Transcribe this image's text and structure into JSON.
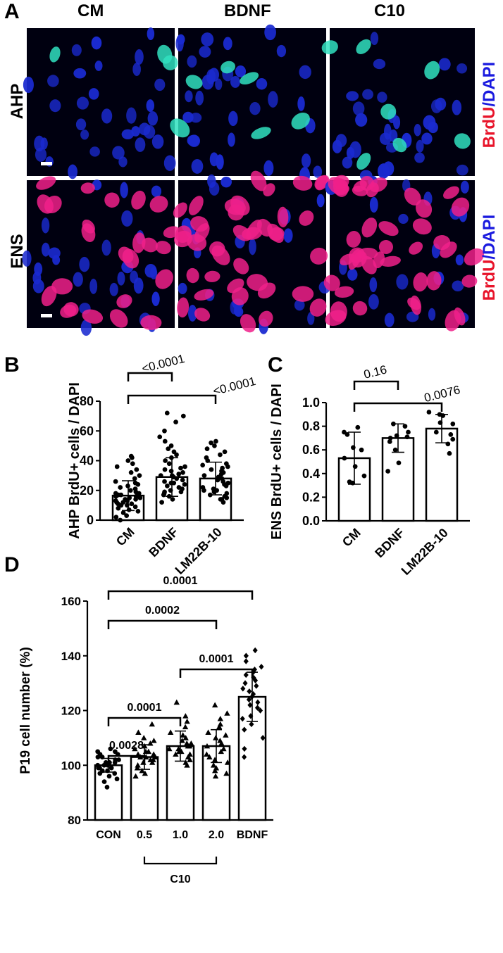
{
  "panel_labels": {
    "a": "A",
    "b": "B",
    "c": "C",
    "d": "D"
  },
  "micrographs": {
    "columns": [
      "CM",
      "BDNF",
      "C10"
    ],
    "rows": [
      "AHP",
      "ENS"
    ],
    "stain": {
      "marker": "BrdU",
      "separator": "/",
      "counterstain": "DAPI"
    },
    "colors": {
      "background": "#000010",
      "dapi": "#1a2ad0",
      "ahp_brdu": "#30e0c0",
      "ens_brdu": "#f0208a"
    }
  },
  "chart_data": [
    {
      "id": "B",
      "type": "bar",
      "categories": [
        "CM",
        "BDNF",
        "LM22B-10"
      ],
      "series": [
        {
          "values": [
            16.5,
            29,
            28
          ]
        }
      ],
      "error": [
        10,
        13,
        11
      ],
      "points": [
        [
          3,
          5,
          6,
          7,
          8,
          9,
          10,
          10,
          11,
          11,
          12,
          12,
          13,
          13,
          14,
          14,
          15,
          15,
          16,
          16,
          17,
          17,
          18,
          18,
          19,
          20,
          21,
          22,
          23,
          24,
          25,
          26,
          28,
          30,
          32,
          34,
          36,
          38,
          40,
          42,
          43,
          0,
          2
        ],
        [
          12,
          14,
          16,
          17,
          18,
          19,
          20,
          21,
          22,
          23,
          24,
          25,
          26,
          27,
          28,
          29,
          30,
          30,
          31,
          32,
          33,
          34,
          35,
          36,
          38,
          40,
          42,
          44,
          46,
          48,
          50,
          53,
          56,
          60,
          66,
          70,
          72,
          19,
          25
        ],
        [
          12,
          14,
          15,
          16,
          17,
          18,
          19,
          20,
          21,
          22,
          23,
          24,
          25,
          26,
          27,
          28,
          29,
          30,
          31,
          32,
          33,
          34,
          35,
          36,
          37,
          38,
          40,
          42,
          44,
          46,
          48,
          50,
          52,
          53,
          14,
          20
        ]
      ],
      "ylabel": "AHP BrdU+ cells / DAPI",
      "ylim": [
        0,
        80
      ],
      "yticks": [
        "0",
        "20",
        "40",
        "60",
        "80"
      ],
      "comparisons": [
        {
          "from": 0,
          "to": 1,
          "label": "<0.0001"
        },
        {
          "from": 0,
          "to": 2,
          "label": "<0.0001"
        }
      ]
    },
    {
      "id": "C",
      "type": "bar",
      "categories": [
        "CM",
        "BDNF",
        "LM22B-10"
      ],
      "series": [
        {
          "values": [
            0.53,
            0.7,
            0.78
          ]
        }
      ],
      "error": [
        0.22,
        0.12,
        0.12
      ],
      "points": [
        [
          0.32,
          0.33,
          0.38,
          0.46,
          0.53,
          0.6,
          0.62,
          0.73,
          0.75,
          0.79
        ],
        [
          0.42,
          0.49,
          0.6,
          0.67,
          0.7,
          0.71,
          0.72,
          0.75,
          0.8,
          0.82
        ],
        [
          0.57,
          0.65,
          0.69,
          0.73,
          0.75,
          0.82,
          0.83,
          0.89,
          0.9,
          0.92
        ]
      ],
      "ylabel": "ENS BrdU+ cells / DAPI",
      "ylim": [
        0,
        1.0
      ],
      "yticks": [
        "0.0",
        "0.2",
        "0.4",
        "0.6",
        "0.8",
        "1.0"
      ],
      "comparisons": [
        {
          "from": 0,
          "to": 1,
          "label": "0.16"
        },
        {
          "from": 0,
          "to": 2,
          "label": "0.0076"
        }
      ]
    },
    {
      "id": "D",
      "type": "bar",
      "categories": [
        "CON",
        "0.5",
        "1.0",
        "2.0",
        "BDNF"
      ],
      "group_label": "C10",
      "series": [
        {
          "values": [
            100,
            103,
            107,
            107,
            125
          ]
        }
      ],
      "error": [
        2.5,
        4.5,
        5.5,
        6,
        9
      ],
      "points": [
        [
          92,
          94,
          95,
          96,
          97,
          97,
          98,
          98,
          99,
          99,
          99,
          100,
          100,
          100,
          101,
          101,
          101,
          102,
          102,
          103,
          103,
          104,
          104,
          105,
          105,
          106
        ],
        [
          96,
          97,
          98,
          99,
          100,
          101,
          101,
          102,
          102,
          103,
          103,
          103,
          104,
          104,
          105,
          105,
          106,
          107,
          108,
          109,
          110,
          112,
          115
        ],
        [
          100,
          101,
          102,
          103,
          104,
          104,
          105,
          105,
          106,
          106,
          107,
          107,
          108,
          108,
          109,
          110,
          111,
          112,
          114,
          116,
          118,
          123
        ],
        [
          96,
          97,
          98,
          99,
          100,
          101,
          102,
          103,
          104,
          105,
          106,
          107,
          108,
          109,
          110,
          111,
          112,
          114,
          115,
          117,
          119,
          122
        ],
        [
          103,
          106,
          110,
          113,
          115,
          117,
          118,
          120,
          121,
          122,
          123,
          124,
          125,
          126,
          127,
          128,
          129,
          130,
          131,
          132,
          133,
          134,
          135,
          136,
          138,
          140,
          142
        ]
      ],
      "markers": [
        "circle",
        "triangle",
        "triangle",
        "triangle",
        "diamond"
      ],
      "ylabel": "P19 cell number (%)",
      "ylim": [
        80,
        160
      ],
      "yticks": [
        "80",
        "100",
        "120",
        "140",
        "160"
      ],
      "comparisons": [
        {
          "from": 0,
          "to": 1,
          "label": "0.0028"
        },
        {
          "from": 0,
          "to": 2,
          "label": "0.0001"
        },
        {
          "from": 2,
          "to": 4,
          "label": "0.0001"
        },
        {
          "from": 0,
          "to": 3,
          "label": "0.0002"
        },
        {
          "from": 0,
          "to": 4,
          "label": "0.0001"
        }
      ]
    }
  ]
}
